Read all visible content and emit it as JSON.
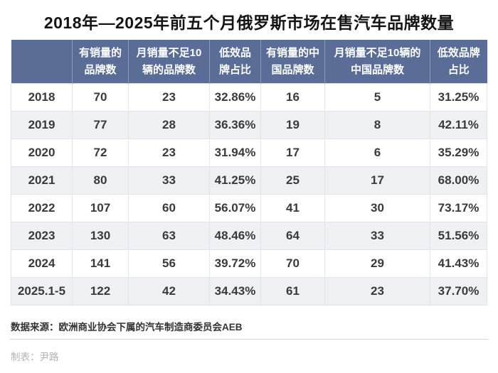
{
  "title": "2018年—2025年前五个月俄罗斯市场在售汽车品牌数量",
  "chart_data": {
    "type": "table",
    "title": "2018年—2025年前五个月俄罗斯市场在售汽车品牌数量",
    "columns": [
      "",
      "有销量的品牌数",
      "月销量不足10辆的品牌数",
      "低效品牌占比",
      "有销量的中国品牌数",
      "月销量不足10辆的中国品牌数",
      "低效品牌占比"
    ],
    "rows": [
      [
        "2018",
        "70",
        "23",
        "32.86%",
        "16",
        "5",
        "31.25%"
      ],
      [
        "2019",
        "77",
        "28",
        "36.36%",
        "19",
        "8",
        "42.11%"
      ],
      [
        "2020",
        "72",
        "23",
        "31.94%",
        "17",
        "6",
        "35.29%"
      ],
      [
        "2021",
        "80",
        "33",
        "41.25%",
        "25",
        "17",
        "68.00%"
      ],
      [
        "2022",
        "107",
        "60",
        "56.07%",
        "41",
        "30",
        "73.17%"
      ],
      [
        "2023",
        "130",
        "63",
        "48.46%",
        "64",
        "33",
        "51.56%"
      ],
      [
        "2024",
        "141",
        "56",
        "39.72%",
        "70",
        "29",
        "41.43%"
      ],
      [
        "2025.1-5",
        "122",
        "42",
        "34.43%",
        "61",
        "23",
        "37.70%"
      ]
    ],
    "layout": {
      "striped": true,
      "stripe_rows": "even (2019, 2021, 2023, 2025.1-5)"
    }
  },
  "footer": {
    "source": "数据来源：欧洲商业协会下属的汽车制造商委员会AEB",
    "credit": "制表：尹路"
  },
  "colors": {
    "header_bg": "#5a6d96",
    "header_text": "#ffffff",
    "row_bg": "#ffffff",
    "row_alt_bg": "#eef0f4",
    "cell_border": "#e2e4e9",
    "header_divider": "#8d9ab5",
    "body_text": "#3a3a3a",
    "title_text": "#141414",
    "source_text": "#333333",
    "credit_text": "#b2b2b2"
  }
}
